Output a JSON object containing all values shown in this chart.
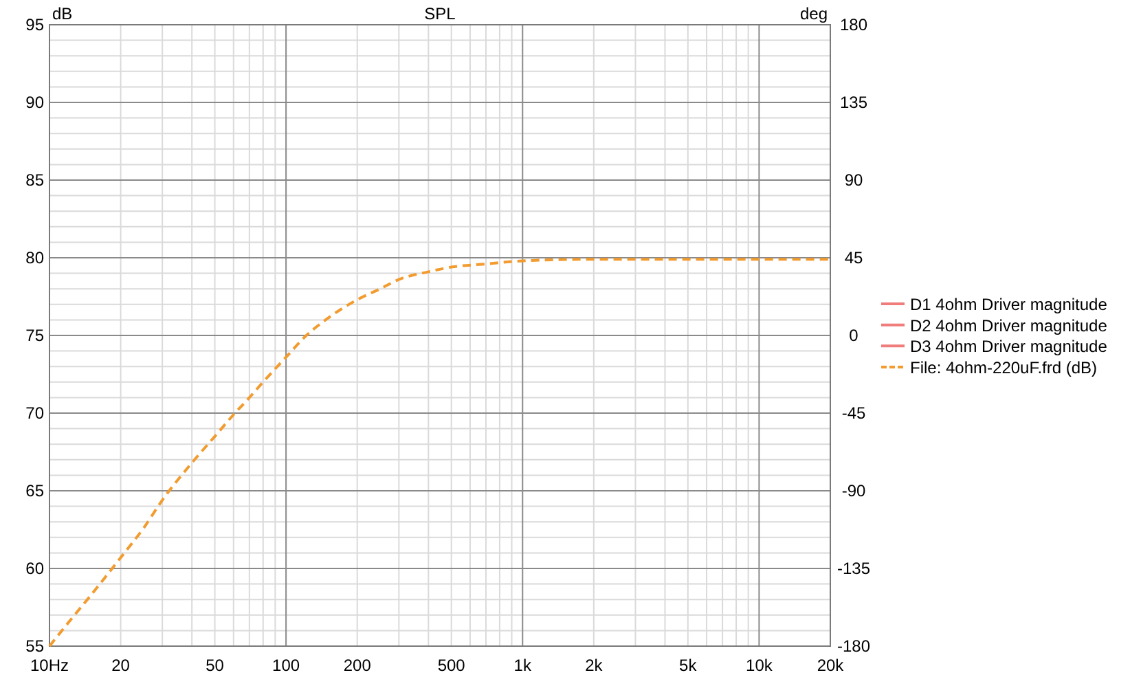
{
  "chart_data": {
    "type": "line",
    "title": "SPL",
    "ylabel": "dB",
    "y2label": "deg",
    "log": "x",
    "grid": true,
    "legend": "right",
    "x": [
      10,
      12,
      15,
      20,
      25,
      30,
      40,
      50,
      60,
      70,
      80,
      100,
      120,
      150,
      200,
      250,
      300,
      400,
      500,
      700,
      1000,
      2000,
      5000,
      10000,
      20000
    ],
    "series": [
      {
        "name": "D1 4ohm Driver magnitude",
        "color": "#f07c7c",
        "line_style": "solid",
        "values": [
          null,
          null,
          null,
          null,
          null,
          null,
          null,
          null,
          null,
          null,
          null,
          null,
          null,
          null,
          null,
          null,
          null,
          null,
          null,
          null,
          null,
          null,
          null,
          null,
          null
        ]
      },
      {
        "name": "D2 4ohm Driver magnitude",
        "color": "#f07c7c",
        "line_style": "solid",
        "values": [
          null,
          null,
          null,
          null,
          null,
          null,
          null,
          null,
          null,
          null,
          null,
          null,
          null,
          null,
          null,
          null,
          null,
          null,
          null,
          null,
          null,
          null,
          null,
          null,
          null
        ]
      },
      {
        "name": "D3 4ohm Driver magnitude",
        "color": "#f07c7c",
        "line_style": "solid",
        "values": [
          null,
          null,
          null,
          null,
          null,
          null,
          null,
          null,
          null,
          null,
          null,
          null,
          null,
          null,
          null,
          null,
          null,
          null,
          null,
          null,
          null,
          null,
          null,
          null,
          null
        ]
      },
      {
        "name": "File: 4ohm-220uF.frd (dB)",
        "color": "#f29b2e",
        "line_style": "dashed",
        "values": [
          55.0,
          56.5,
          58.3,
          60.7,
          62.6,
          64.4,
          66.8,
          68.5,
          69.9,
          71.0,
          72.0,
          73.6,
          74.9,
          76.1,
          77.3,
          78.0,
          78.6,
          79.1,
          79.4,
          79.6,
          79.8,
          79.9,
          79.9,
          79.9,
          79.9
        ]
      }
    ],
    "xlim": [
      10,
      20000
    ],
    "xticks": [
      {
        "value": 10,
        "label": "10Hz"
      },
      20,
      {
        "value": 30,
        "label": null
      },
      {
        "value": 40,
        "label": null
      },
      50,
      {
        "value": 60,
        "label": null
      },
      {
        "value": 70,
        "label": null
      },
      {
        "value": 80,
        "label": null
      },
      {
        "value": 90,
        "label": null
      },
      100,
      200,
      {
        "value": 300,
        "label": null
      },
      {
        "value": 400,
        "label": null
      },
      500,
      {
        "value": 600,
        "label": null
      },
      {
        "value": 700,
        "label": null
      },
      {
        "value": 800,
        "label": null
      },
      {
        "value": 900,
        "label": null
      },
      {
        "value": 1000,
        "label": "1k"
      },
      {
        "value": 2000,
        "label": "2k"
      },
      {
        "value": 3000,
        "label": null
      },
      {
        "value": 4000,
        "label": null
      },
      {
        "value": 5000,
        "label": "5k"
      },
      {
        "value": 6000,
        "label": null
      },
      {
        "value": 7000,
        "label": null
      },
      {
        "value": 8000,
        "label": null
      },
      {
        "value": 9000,
        "label": null
      },
      {
        "value": 10000,
        "label": "10k"
      },
      {
        "value": 20000,
        "label": "20k"
      }
    ],
    "ylim": [
      55,
      95
    ],
    "yticks": [
      55,
      {
        "value": 56,
        "label": null
      },
      {
        "value": 57,
        "label": null
      },
      {
        "value": 58,
        "label": null
      },
      {
        "value": 59,
        "label": null
      },
      60,
      {
        "value": 61,
        "label": null
      },
      {
        "value": 62,
        "label": null
      },
      {
        "value": 63,
        "label": null
      },
      {
        "value": 64,
        "label": null
      },
      65,
      {
        "value": 66,
        "label": null
      },
      {
        "value": 67,
        "label": null
      },
      {
        "value": 68,
        "label": null
      },
      {
        "value": 69,
        "label": null
      },
      70,
      {
        "value": 71,
        "label": null
      },
      {
        "value": 72,
        "label": null
      },
      {
        "value": 73,
        "label": null
      },
      {
        "value": 74,
        "label": null
      },
      75,
      {
        "value": 76,
        "label": null
      },
      {
        "value": 77,
        "label": null
      },
      {
        "value": 78,
        "label": null
      },
      {
        "value": 79,
        "label": null
      },
      80,
      {
        "value": 81,
        "label": null
      },
      {
        "value": 82,
        "label": null
      },
      {
        "value": 83,
        "label": null
      },
      {
        "value": 84,
        "label": null
      },
      85,
      {
        "value": 86,
        "label": null
      },
      {
        "value": 87,
        "label": null
      },
      {
        "value": 88,
        "label": null
      },
      {
        "value": 89,
        "label": null
      },
      90,
      {
        "value": 91,
        "label": null
      },
      {
        "value": 92,
        "label": null
      },
      {
        "value": 93,
        "label": null
      },
      {
        "value": 94,
        "label": null
      },
      95
    ],
    "y2lim": [
      -180,
      180
    ],
    "y2ticks": [
      -180,
      -135,
      -90,
      -45,
      0,
      45,
      90,
      135,
      180
    ]
  }
}
